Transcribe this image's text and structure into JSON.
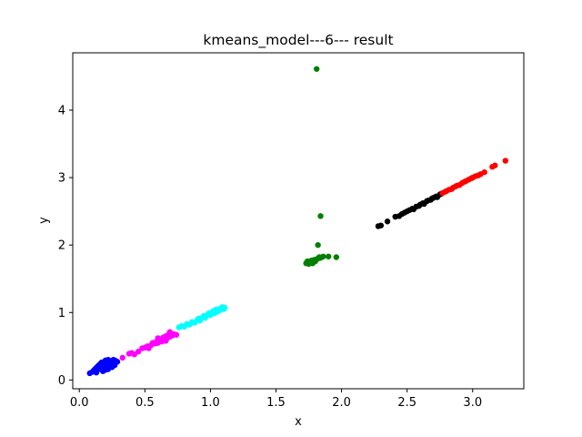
{
  "chart_data": {
    "type": "scatter",
    "title": "kmeans_model---6--- result",
    "xlabel": "x",
    "ylabel": "y",
    "xlim": [
      -0.05,
      3.39
    ],
    "ylim": [
      -0.13,
      4.85
    ],
    "xticks": [
      0.0,
      0.5,
      1.0,
      1.5,
      2.0,
      2.5,
      3.0
    ],
    "xtick_labels": [
      "0.0",
      "0.5",
      "1.0",
      "1.5",
      "2.0",
      "2.5",
      "3.0"
    ],
    "yticks": [
      0,
      1,
      2,
      3,
      4
    ],
    "ytick_labels": [
      "0",
      "1",
      "2",
      "3",
      "4"
    ],
    "grid": false,
    "legend": "none",
    "series": [
      {
        "color": "#0000ff",
        "points": [
          [
            0.08,
            0.1
          ],
          [
            0.1,
            0.12
          ],
          [
            0.11,
            0.14
          ],
          [
            0.12,
            0.13
          ],
          [
            0.12,
            0.16
          ],
          [
            0.13,
            0.18
          ],
          [
            0.14,
            0.15
          ],
          [
            0.14,
            0.2
          ],
          [
            0.15,
            0.17
          ],
          [
            0.15,
            0.22
          ],
          [
            0.16,
            0.19
          ],
          [
            0.16,
            0.24
          ],
          [
            0.17,
            0.21
          ],
          [
            0.17,
            0.26
          ],
          [
            0.18,
            0.18
          ],
          [
            0.18,
            0.23
          ],
          [
            0.19,
            0.27
          ],
          [
            0.19,
            0.2
          ],
          [
            0.2,
            0.25
          ],
          [
            0.2,
            0.29
          ],
          [
            0.21,
            0.22
          ],
          [
            0.21,
            0.27
          ],
          [
            0.22,
            0.24
          ],
          [
            0.22,
            0.3
          ],
          [
            0.23,
            0.21
          ],
          [
            0.23,
            0.26
          ],
          [
            0.24,
            0.28
          ],
          [
            0.24,
            0.23
          ],
          [
            0.25,
            0.27
          ],
          [
            0.26,
            0.25
          ],
          [
            0.26,
            0.3
          ],
          [
            0.27,
            0.29
          ],
          [
            0.28,
            0.28
          ],
          [
            0.18,
            0.13
          ],
          [
            0.2,
            0.15
          ],
          [
            0.22,
            0.16
          ],
          [
            0.13,
            0.11
          ],
          [
            0.25,
            0.19
          ],
          [
            0.27,
            0.22
          ],
          [
            0.29,
            0.27
          ]
        ]
      },
      {
        "color": "#ff00ff",
        "points": [
          [
            0.33,
            0.33
          ],
          [
            0.38,
            0.39
          ],
          [
            0.4,
            0.4
          ],
          [
            0.42,
            0.38
          ],
          [
            0.45,
            0.42
          ],
          [
            0.48,
            0.47
          ],
          [
            0.5,
            0.48
          ],
          [
            0.52,
            0.5
          ],
          [
            0.53,
            0.47
          ],
          [
            0.55,
            0.52
          ],
          [
            0.56,
            0.55
          ],
          [
            0.58,
            0.54
          ],
          [
            0.59,
            0.57
          ],
          [
            0.6,
            0.55
          ],
          [
            0.61,
            0.59
          ],
          [
            0.62,
            0.6
          ],
          [
            0.63,
            0.57
          ],
          [
            0.64,
            0.63
          ],
          [
            0.65,
            0.61
          ],
          [
            0.66,
            0.65
          ],
          [
            0.67,
            0.62
          ],
          [
            0.68,
            0.67
          ],
          [
            0.69,
            0.64
          ],
          [
            0.7,
            0.69
          ],
          [
            0.71,
            0.66
          ],
          [
            0.72,
            0.68
          ],
          [
            0.74,
            0.67
          ],
          [
            0.66,
            0.58
          ],
          [
            0.6,
            0.62
          ],
          [
            0.69,
            0.71
          ]
        ]
      },
      {
        "color": "#00ffff",
        "points": [
          [
            0.76,
            0.78
          ],
          [
            0.78,
            0.8
          ],
          [
            0.8,
            0.79
          ],
          [
            0.82,
            0.83
          ],
          [
            0.84,
            0.82
          ],
          [
            0.86,
            0.86
          ],
          [
            0.88,
            0.85
          ],
          [
            0.9,
            0.89
          ],
          [
            0.91,
            0.91
          ],
          [
            0.92,
            0.88
          ],
          [
            0.94,
            0.93
          ],
          [
            0.95,
            0.95
          ],
          [
            0.96,
            0.92
          ],
          [
            0.98,
            0.97
          ],
          [
            0.99,
            0.99
          ],
          [
            1.0,
            0.96
          ],
          [
            1.01,
            1.0
          ],
          [
            1.02,
            1.02
          ],
          [
            1.03,
            0.99
          ],
          [
            1.04,
            1.04
          ],
          [
            1.05,
            1.01
          ],
          [
            1.06,
            1.05
          ],
          [
            1.07,
            1.03
          ],
          [
            1.08,
            1.06
          ],
          [
            1.09,
            1.08
          ],
          [
            1.1,
            1.05
          ],
          [
            1.11,
            1.07
          ]
        ]
      },
      {
        "color": "#008000",
        "points": [
          [
            1.81,
            4.61
          ],
          [
            1.84,
            2.43
          ],
          [
            1.82,
            2.0
          ],
          [
            1.73,
            1.73
          ],
          [
            1.74,
            1.76
          ],
          [
            1.75,
            1.72
          ],
          [
            1.76,
            1.75
          ],
          [
            1.77,
            1.74
          ],
          [
            1.77,
            1.77
          ],
          [
            1.78,
            1.76
          ],
          [
            1.79,
            1.78
          ],
          [
            1.8,
            1.76
          ],
          [
            1.81,
            1.79
          ],
          [
            1.82,
            1.8
          ],
          [
            1.83,
            1.82
          ],
          [
            1.84,
            1.81
          ],
          [
            1.86,
            1.83
          ],
          [
            1.9,
            1.83
          ],
          [
            1.96,
            1.82
          ],
          [
            1.78,
            1.73
          ]
        ]
      },
      {
        "color": "#000000",
        "points": [
          [
            2.28,
            2.28
          ],
          [
            2.3,
            2.29
          ],
          [
            2.35,
            2.35
          ],
          [
            2.41,
            2.42
          ],
          [
            2.44,
            2.43
          ],
          [
            2.46,
            2.46
          ],
          [
            2.48,
            2.48
          ],
          [
            2.5,
            2.5
          ],
          [
            2.52,
            2.52
          ],
          [
            2.54,
            2.54
          ],
          [
            2.55,
            2.53
          ],
          [
            2.57,
            2.57
          ],
          [
            2.59,
            2.58
          ],
          [
            2.6,
            2.6
          ],
          [
            2.62,
            2.62
          ],
          [
            2.63,
            2.61
          ],
          [
            2.65,
            2.65
          ],
          [
            2.66,
            2.66
          ],
          [
            2.68,
            2.67
          ],
          [
            2.69,
            2.69
          ],
          [
            2.7,
            2.7
          ],
          [
            2.72,
            2.72
          ],
          [
            2.73,
            2.71
          ],
          [
            2.75,
            2.75
          ],
          [
            2.76,
            2.76
          ]
        ]
      },
      {
        "color": "#ff0000",
        "points": [
          [
            2.77,
            2.77
          ],
          [
            2.79,
            2.79
          ],
          [
            2.8,
            2.8
          ],
          [
            2.82,
            2.82
          ],
          [
            2.84,
            2.83
          ],
          [
            2.85,
            2.85
          ],
          [
            2.87,
            2.87
          ],
          [
            2.88,
            2.88
          ],
          [
            2.9,
            2.89
          ],
          [
            2.92,
            2.92
          ],
          [
            2.94,
            2.94
          ],
          [
            2.95,
            2.95
          ],
          [
            2.97,
            2.97
          ],
          [
            2.99,
            2.99
          ],
          [
            3.0,
            3.0
          ],
          [
            3.02,
            3.02
          ],
          [
            3.04,
            3.03
          ],
          [
            3.06,
            3.05
          ],
          [
            3.09,
            3.08
          ],
          [
            3.15,
            3.16
          ],
          [
            3.17,
            3.18
          ],
          [
            3.25,
            3.25
          ]
        ]
      }
    ]
  }
}
